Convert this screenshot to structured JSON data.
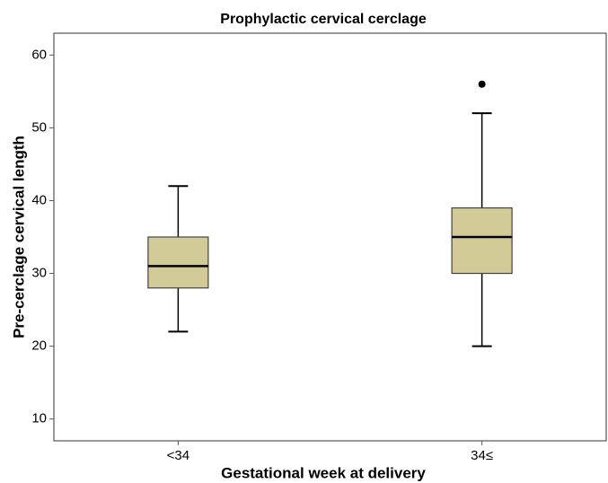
{
  "chart_data": {
    "type": "box",
    "title": "Prophylactic cervical cerclage",
    "x_label": "Gestational week at delivery",
    "y_label": "Pre-cerclage cervical length",
    "categories": [
      "<34",
      "34≤"
    ],
    "boxes": [
      {
        "min": 22,
        "q1": 28,
        "median": 31,
        "q3": 35,
        "max": 42,
        "outliers": []
      },
      {
        "min": 20,
        "q1": 30,
        "median": 35,
        "q3": 39,
        "max": 52,
        "outliers": [
          56
        ]
      }
    ],
    "color": "#d3cb97",
    "ylim": [
      7,
      63
    ],
    "yticks": [
      10,
      20,
      30,
      40,
      50,
      60
    ],
    "grid": false
  }
}
